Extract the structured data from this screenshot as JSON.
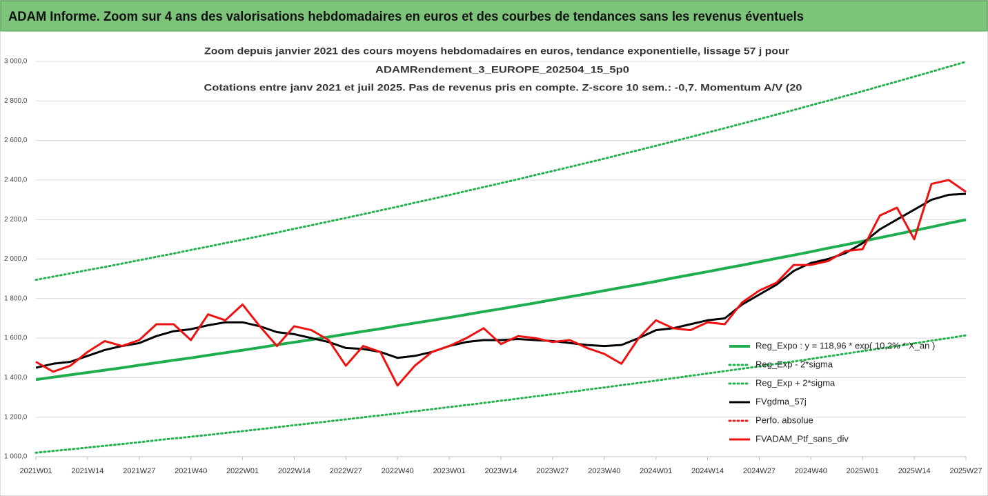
{
  "header": {
    "title": "ADAM Informe. Zoom sur 4 ans des valorisations hebdomadaires en euros et des courbes de tendances sans les revenus éventuels"
  },
  "chart_data": {
    "type": "line",
    "title_lines": [
      "Zoom depuis janvier 2021 des cours moyens hebdomadaires  en euros, tendance exponentielle, lissage 57 j pour",
      "ADAMRendement_3_EUROPE_202504_15_5p0",
      "Cotations entre janv 2021 et juil 2025. Pas de revenus pris en compte. Z-score 10 sem.: -0,7. Momentum A/V (20"
    ],
    "categories": [
      "2021W01",
      null,
      null,
      "2021W14",
      null,
      null,
      "2021W27",
      null,
      null,
      "2021W40",
      null,
      null,
      "2022W01",
      null,
      null,
      "2022W14",
      null,
      null,
      "2022W27",
      null,
      null,
      "2022W40",
      null,
      null,
      "2023W01",
      null,
      null,
      "2023W14",
      null,
      null,
      "2023W27",
      null,
      null,
      "2023W40",
      null,
      null,
      "2024W01",
      null,
      null,
      "2024W14",
      null,
      null,
      "2024W27",
      null,
      null,
      "2024W40",
      null,
      null,
      "2025W01",
      null,
      null,
      "2025W14",
      null,
      null,
      "2025W27"
    ],
    "ylim": [
      1000,
      3000
    ],
    "yticks": [
      {
        "value": 1000,
        "label": "1 000,0"
      },
      {
        "value": 1200,
        "label": "1 200,0"
      },
      {
        "value": 1400,
        "label": "1 400,0"
      },
      {
        "value": 1600,
        "label": "1 600,0"
      },
      {
        "value": 1800,
        "label": "1 800,0"
      },
      {
        "value": 2000,
        "label": "2 000,0"
      },
      {
        "value": 2200,
        "label": "2 200,0"
      },
      {
        "value": 2400,
        "label": "2 400,0"
      },
      {
        "value": 2600,
        "label": "2 600,0"
      },
      {
        "value": 2800,
        "label": "2 800,0"
      },
      {
        "value": 3000,
        "label": "3 000,0"
      }
    ],
    "grid": true,
    "legend": "lower right",
    "series": [
      {
        "name": "Reg_Expo : y = 118,96 * exp( 10,2% * X_an )",
        "color": "#1fae4f",
        "dash": "solid",
        "width": 4,
        "values": [
          1390,
          1402,
          1414,
          1426,
          1438,
          1450,
          1463,
          1475,
          1488,
          1500,
          1513,
          1526,
          1539,
          1552,
          1566,
          1579,
          1592,
          1606,
          1620,
          1634,
          1647,
          1662,
          1676,
          1690,
          1704,
          1719,
          1734,
          1748,
          1763,
          1778,
          1794,
          1809,
          1824,
          1840,
          1856,
          1871,
          1887,
          1904,
          1920,
          1936,
          1953,
          1969,
          1986,
          2003,
          2020,
          2037,
          2055,
          2072,
          2090,
          2108,
          2126,
          2144,
          2162,
          2181,
          2199
        ]
      },
      {
        "name": "Reg_Exp - 2*sigma",
        "color": "#22b14c",
        "dash": "dotted",
        "width": 3,
        "values": [
          1020,
          1029,
          1037,
          1046,
          1055,
          1064,
          1073,
          1083,
          1092,
          1101,
          1110,
          1120,
          1129,
          1139,
          1149,
          1159,
          1169,
          1179,
          1189,
          1199,
          1209,
          1219,
          1230,
          1240,
          1251,
          1261,
          1272,
          1283,
          1294,
          1305,
          1316,
          1327,
          1339,
          1350,
          1362,
          1373,
          1385,
          1397,
          1409,
          1421,
          1433,
          1445,
          1457,
          1470,
          1482,
          1495,
          1508,
          1521,
          1534,
          1547,
          1560,
          1573,
          1587,
          1600,
          1614
        ]
      },
      {
        "name": "Reg_Exp + 2*sigma",
        "color": "#22b14c",
        "dash": "dotted",
        "width": 3,
        "values": [
          1895,
          1911,
          1927,
          1944,
          1960,
          1977,
          1994,
          2011,
          2028,
          2046,
          2063,
          2081,
          2098,
          2116,
          2134,
          2153,
          2171,
          2190,
          2208,
          2227,
          2246,
          2265,
          2285,
          2304,
          2324,
          2344,
          2364,
          2384,
          2404,
          2425,
          2445,
          2466,
          2487,
          2508,
          2530,
          2551,
          2573,
          2595,
          2617,
          2640,
          2662,
          2685,
          2708,
          2731,
          2754,
          2778,
          2801,
          2825,
          2849,
          2874,
          2898,
          2923,
          2948,
          2973,
          2998
        ]
      },
      {
        "name": "FVgdma_57j",
        "color": "#000000",
        "dash": "solid",
        "width": 3,
        "values": [
          1450,
          1470,
          1480,
          1510,
          1540,
          1560,
          1575,
          1610,
          1635,
          1645,
          1665,
          1680,
          1680,
          1660,
          1630,
          1620,
          1600,
          1580,
          1550,
          1545,
          1530,
          1500,
          1510,
          1530,
          1560,
          1580,
          1590,
          1590,
          1595,
          1590,
          1585,
          1575,
          1565,
          1560,
          1565,
          1600,
          1640,
          1650,
          1670,
          1690,
          1700,
          1770,
          1820,
          1870,
          1940,
          1980,
          2000,
          2030,
          2080,
          2150,
          2200,
          2250,
          2300,
          2325,
          2330
        ]
      },
      {
        "name": "Perfo. absolue",
        "color": "#e02020",
        "dash": "dotted",
        "width": 3,
        "values": [
          null,
          null,
          null,
          null,
          null,
          null,
          null,
          null,
          null,
          null,
          null,
          null,
          null,
          null,
          null,
          null,
          null,
          null,
          null,
          null,
          null,
          null,
          null,
          null,
          null,
          null,
          null,
          null,
          null,
          null,
          null,
          null,
          null,
          null,
          null,
          null,
          null,
          null,
          null,
          null,
          null,
          null,
          null,
          null,
          null,
          null,
          null,
          null,
          null,
          null,
          null,
          null,
          null,
          null,
          null
        ]
      },
      {
        "name": "FVADAM_Ptf_sans_div",
        "color": "#ee1111",
        "dash": "solid",
        "width": 3,
        "values": [
          1480,
          1430,
          1460,
          1530,
          1585,
          1560,
          1590,
          1670,
          1670,
          1590,
          1720,
          1690,
          1770,
          1660,
          1560,
          1660,
          1640,
          1590,
          1460,
          1560,
          1530,
          1360,
          1460,
          1530,
          1560,
          1600,
          1650,
          1570,
          1610,
          1600,
          1580,
          1590,
          1550,
          1520,
          1470,
          1600,
          1690,
          1650,
          1640,
          1680,
          1670,
          1780,
          1840,
          1880,
          1970,
          1970,
          1990,
          2040,
          2050,
          2220,
          2260,
          2100,
          2380,
          2400,
          2340
        ]
      }
    ]
  }
}
